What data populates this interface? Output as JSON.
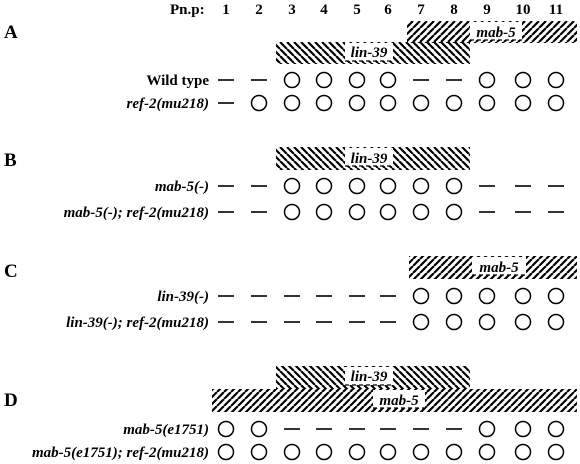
{
  "header": {
    "label": "Pn.p:",
    "cells": [
      "1",
      "2",
      "3",
      "4",
      "5",
      "6",
      "7",
      "8",
      "9",
      "10",
      "11"
    ]
  },
  "genes": {
    "lin39": "lin-39",
    "mab5": "mab-5"
  },
  "panels": [
    {
      "letter": "A",
      "rows": [
        {
          "label": "Wild type",
          "italic": false,
          "pattern": "--OOOO--OOO"
        },
        {
          "label": "ref-2(mu218)",
          "italic": true,
          "pattern": "-OOOOOOOOOO"
        }
      ]
    },
    {
      "letter": "B",
      "rows": [
        {
          "label": "mab-5(-)",
          "italic": true,
          "pattern": "--OOOOOO---"
        },
        {
          "label": "mab-5(-); ref-2(mu218)",
          "italic": true,
          "pattern": "--OOOOOO---"
        }
      ]
    },
    {
      "letter": "C",
      "rows": [
        {
          "label": "lin-39(-)",
          "italic": true,
          "pattern": "------OOOOO"
        },
        {
          "label": "lin-39(-); ref-2(mu218)",
          "italic": true,
          "pattern": "------OOOOO"
        }
      ]
    },
    {
      "letter": "D",
      "rows": [
        {
          "label": "mab-5(e1751)",
          "italic": true,
          "pattern": "OO------OOO"
        },
        {
          "label": "mab-5(e1751); ref-2(mu218)",
          "italic": true,
          "pattern": "OOOOOOOOOOO"
        }
      ]
    }
  ]
}
